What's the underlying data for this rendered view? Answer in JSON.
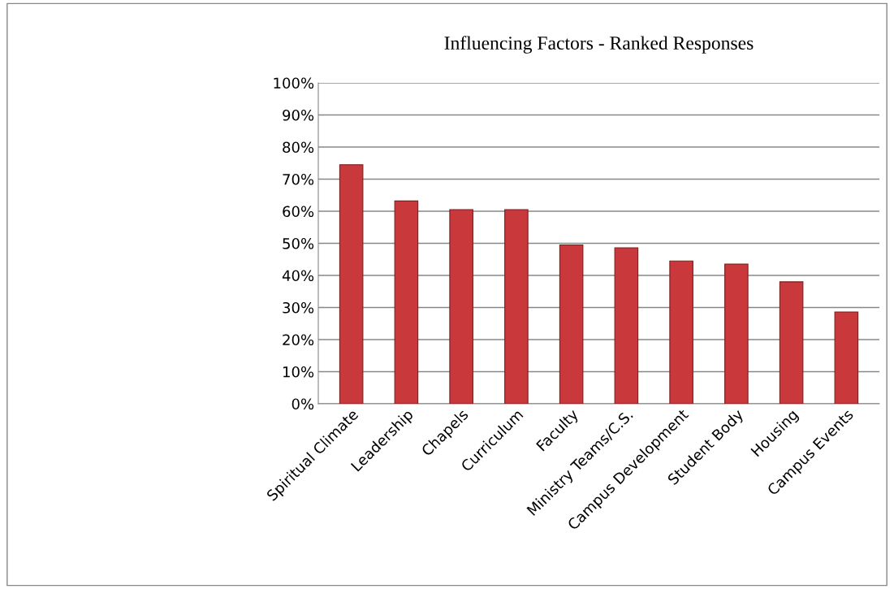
{
  "chart_data": {
    "type": "bar",
    "title": "Influencing Factors - Ranked Responses",
    "categories": [
      "Spiritual Climate",
      "Leadership",
      "Chapels",
      "Curriculum",
      "Faculty",
      "Ministry Teams/C.S.",
      "Campus Development",
      "Student Body",
      "Housing",
      "Campus Events"
    ],
    "values": [
      74.5,
      63.2,
      60.5,
      60.5,
      49.5,
      48.6,
      44.5,
      43.5,
      38,
      28.6
    ],
    "color": "#c9383a",
    "ylim": [
      0,
      100
    ],
    "yticks": [
      {
        "value": 0,
        "label": "0%"
      },
      {
        "value": 10,
        "label": "10%"
      },
      {
        "value": 20,
        "label": "20%"
      },
      {
        "value": 30,
        "label": "30%"
      },
      {
        "value": 40,
        "label": "40%"
      },
      {
        "value": 50,
        "label": "50%"
      },
      {
        "value": 60,
        "label": "60%"
      },
      {
        "value": 70,
        "label": "70%"
      },
      {
        "value": 80,
        "label": "80%"
      },
      {
        "value": 90,
        "label": "90%"
      },
      {
        "value": 100,
        "label": "100%"
      }
    ],
    "grid": "y"
  }
}
